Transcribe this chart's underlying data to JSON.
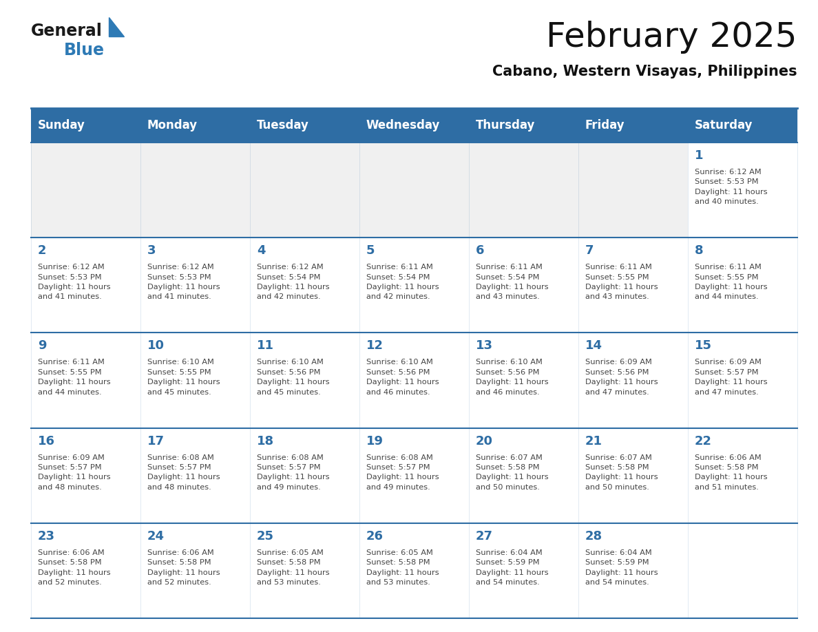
{
  "title": "February 2025",
  "subtitle": "Cabano, Western Visayas, Philippines",
  "header_bg_color": "#2E6DA4",
  "header_text_color": "#FFFFFF",
  "cell_bg_color": "#FFFFFF",
  "alt_cell_bg_color": "#F0F0F0",
  "day_number_color": "#2E6DA4",
  "text_color": "#444444",
  "border_color": "#2E6DA4",
  "days_of_week": [
    "Sunday",
    "Monday",
    "Tuesday",
    "Wednesday",
    "Thursday",
    "Friday",
    "Saturday"
  ],
  "weeks": [
    [
      {
        "day": 0,
        "info": ""
      },
      {
        "day": 0,
        "info": ""
      },
      {
        "day": 0,
        "info": ""
      },
      {
        "day": 0,
        "info": ""
      },
      {
        "day": 0,
        "info": ""
      },
      {
        "day": 0,
        "info": ""
      },
      {
        "day": 1,
        "info": "Sunrise: 6:12 AM\nSunset: 5:53 PM\nDaylight: 11 hours\nand 40 minutes."
      }
    ],
    [
      {
        "day": 2,
        "info": "Sunrise: 6:12 AM\nSunset: 5:53 PM\nDaylight: 11 hours\nand 41 minutes."
      },
      {
        "day": 3,
        "info": "Sunrise: 6:12 AM\nSunset: 5:53 PM\nDaylight: 11 hours\nand 41 minutes."
      },
      {
        "day": 4,
        "info": "Sunrise: 6:12 AM\nSunset: 5:54 PM\nDaylight: 11 hours\nand 42 minutes."
      },
      {
        "day": 5,
        "info": "Sunrise: 6:11 AM\nSunset: 5:54 PM\nDaylight: 11 hours\nand 42 minutes."
      },
      {
        "day": 6,
        "info": "Sunrise: 6:11 AM\nSunset: 5:54 PM\nDaylight: 11 hours\nand 43 minutes."
      },
      {
        "day": 7,
        "info": "Sunrise: 6:11 AM\nSunset: 5:55 PM\nDaylight: 11 hours\nand 43 minutes."
      },
      {
        "day": 8,
        "info": "Sunrise: 6:11 AM\nSunset: 5:55 PM\nDaylight: 11 hours\nand 44 minutes."
      }
    ],
    [
      {
        "day": 9,
        "info": "Sunrise: 6:11 AM\nSunset: 5:55 PM\nDaylight: 11 hours\nand 44 minutes."
      },
      {
        "day": 10,
        "info": "Sunrise: 6:10 AM\nSunset: 5:55 PM\nDaylight: 11 hours\nand 45 minutes."
      },
      {
        "day": 11,
        "info": "Sunrise: 6:10 AM\nSunset: 5:56 PM\nDaylight: 11 hours\nand 45 minutes."
      },
      {
        "day": 12,
        "info": "Sunrise: 6:10 AM\nSunset: 5:56 PM\nDaylight: 11 hours\nand 46 minutes."
      },
      {
        "day": 13,
        "info": "Sunrise: 6:10 AM\nSunset: 5:56 PM\nDaylight: 11 hours\nand 46 minutes."
      },
      {
        "day": 14,
        "info": "Sunrise: 6:09 AM\nSunset: 5:56 PM\nDaylight: 11 hours\nand 47 minutes."
      },
      {
        "day": 15,
        "info": "Sunrise: 6:09 AM\nSunset: 5:57 PM\nDaylight: 11 hours\nand 47 minutes."
      }
    ],
    [
      {
        "day": 16,
        "info": "Sunrise: 6:09 AM\nSunset: 5:57 PM\nDaylight: 11 hours\nand 48 minutes."
      },
      {
        "day": 17,
        "info": "Sunrise: 6:08 AM\nSunset: 5:57 PM\nDaylight: 11 hours\nand 48 minutes."
      },
      {
        "day": 18,
        "info": "Sunrise: 6:08 AM\nSunset: 5:57 PM\nDaylight: 11 hours\nand 49 minutes."
      },
      {
        "day": 19,
        "info": "Sunrise: 6:08 AM\nSunset: 5:57 PM\nDaylight: 11 hours\nand 49 minutes."
      },
      {
        "day": 20,
        "info": "Sunrise: 6:07 AM\nSunset: 5:58 PM\nDaylight: 11 hours\nand 50 minutes."
      },
      {
        "day": 21,
        "info": "Sunrise: 6:07 AM\nSunset: 5:58 PM\nDaylight: 11 hours\nand 50 minutes."
      },
      {
        "day": 22,
        "info": "Sunrise: 6:06 AM\nSunset: 5:58 PM\nDaylight: 11 hours\nand 51 minutes."
      }
    ],
    [
      {
        "day": 23,
        "info": "Sunrise: 6:06 AM\nSunset: 5:58 PM\nDaylight: 11 hours\nand 52 minutes."
      },
      {
        "day": 24,
        "info": "Sunrise: 6:06 AM\nSunset: 5:58 PM\nDaylight: 11 hours\nand 52 minutes."
      },
      {
        "day": 25,
        "info": "Sunrise: 6:05 AM\nSunset: 5:58 PM\nDaylight: 11 hours\nand 53 minutes."
      },
      {
        "day": 26,
        "info": "Sunrise: 6:05 AM\nSunset: 5:58 PM\nDaylight: 11 hours\nand 53 minutes."
      },
      {
        "day": 27,
        "info": "Sunrise: 6:04 AM\nSunset: 5:59 PM\nDaylight: 11 hours\nand 54 minutes."
      },
      {
        "day": 28,
        "info": "Sunrise: 6:04 AM\nSunset: 5:59 PM\nDaylight: 11 hours\nand 54 minutes."
      },
      {
        "day": 0,
        "info": ""
      }
    ]
  ],
  "logo_text1": "General",
  "logo_text2": "Blue",
  "logo_color1": "#1a1a1a",
  "logo_color2": "#2E7AB5",
  "logo_triangle_color": "#2E7AB5"
}
